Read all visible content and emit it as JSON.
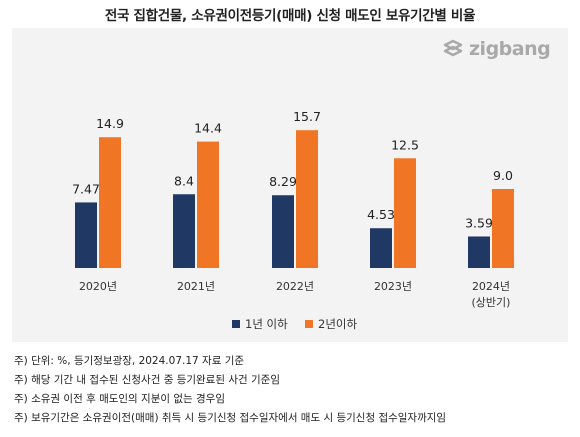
{
  "title": "전국 집합건물, 소유권이전등기(매매) 신청 매도인 보유기간별 비율",
  "logo_text": "zigbang",
  "colors": {
    "series1": "#203864",
    "series2": "#F07626",
    "panel": "#F3F3F3",
    "logo": "#A9A9A9"
  },
  "chart_data": {
    "type": "bar",
    "categories": [
      "2020년",
      "2021년",
      "2022년",
      "2023년",
      "2024년\n(상반기)"
    ],
    "series": [
      {
        "name": "1년 이하",
        "values": [
          7.47,
          8.4,
          8.29,
          4.53,
          3.59
        ],
        "labels": [
          "7.47",
          "8.4",
          "8.29",
          "4.53",
          "3.59"
        ]
      },
      {
        "name": "2년이하",
        "values": [
          14.9,
          14.4,
          15.7,
          12.5,
          9.0
        ],
        "labels": [
          "14.9",
          "14.4",
          "15.7",
          "12.5",
          "9.0"
        ]
      }
    ],
    "ylim": [
      0,
      18
    ],
    "grid": false,
    "data_labels": true,
    "legend_position": "bottom"
  },
  "notes": [
    "주) 단위: %, 등기정보광장, 2024.07.17 자료 기준",
    "주) 해당 기간 내 접수된 신청사건 중 등기완료된 사건 기준임",
    "주) 소유권 이전 후 매도인의 지분이 없는 경우임",
    "주) 보유기간은 소유권이전(매매) 취득 시 등기신청 접수일자에서 매도 시 등기신청 접수일자까지임"
  ]
}
